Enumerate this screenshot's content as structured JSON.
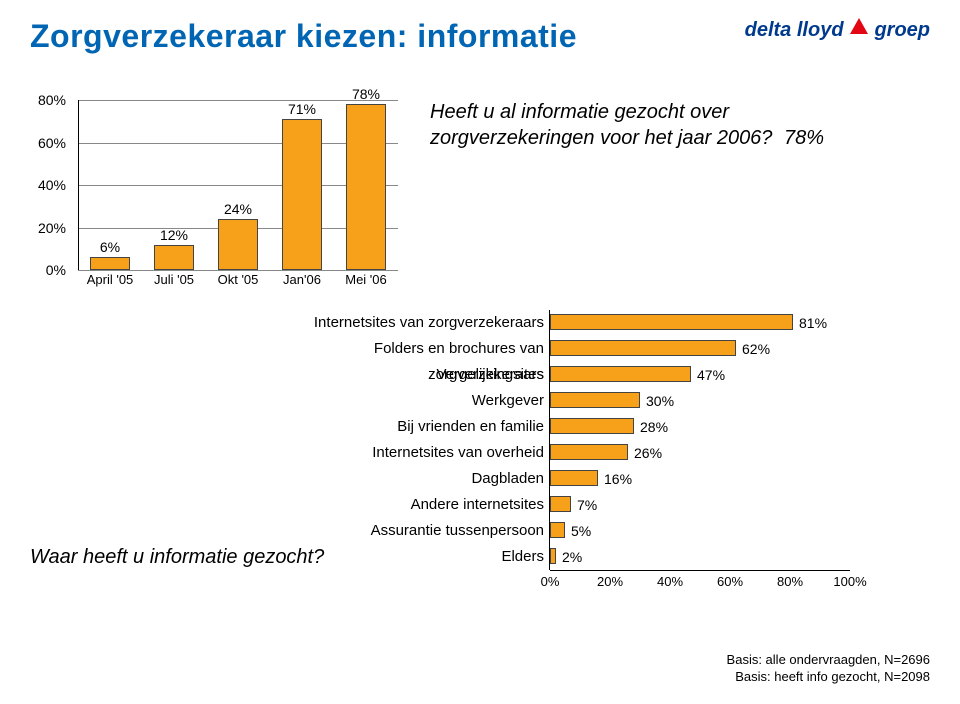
{
  "title": "Zorgverzekeraar kiezen: informatie",
  "title_color": "#0066b3",
  "logo": {
    "text1": "delta lloyd",
    "text2": "groep",
    "color": "#003a8c",
    "accent": "#e30613"
  },
  "column_chart": {
    "type": "bar",
    "y": {
      "ticks": [
        "0%",
        "20%",
        "40%",
        "60%",
        "80%"
      ],
      "max": 80,
      "step": 20,
      "fontsize": 14
    },
    "categories": [
      "April '05",
      "Juli '05",
      "Okt '05",
      "Jan'06",
      "Mei '06"
    ],
    "values": [
      6,
      12,
      24,
      71,
      78
    ],
    "value_labels": [
      "6%",
      "12%",
      "24%",
      "71%",
      "78%"
    ],
    "bar_color": "#f7a11b",
    "bar_border": "#444444",
    "grid_color": "#888888",
    "background": "#ffffff",
    "label_fontsize": 13,
    "value_fontsize": 14
  },
  "question1": {
    "text": "Heeft u al informatie gezocht over zorgverzekeringen voor het jaar 2006?",
    "suffix": "78%",
    "fontsize": 20
  },
  "hbar_chart": {
    "type": "bar_horizontal",
    "categories": [
      "Internetsites van zorgverzekeraars",
      "Folders en brochures van zorgverzekeraars",
      "Vergelijkingsites",
      "Werkgever",
      "Bij vrienden en familie",
      "Internetsites van overheid",
      "Dagbladen",
      "Andere internetsites",
      "Assurantie tussenpersoon",
      "Elders"
    ],
    "values": [
      81,
      62,
      47,
      30,
      28,
      26,
      16,
      7,
      5,
      2
    ],
    "value_labels": [
      "81%",
      "62%",
      "47%",
      "30%",
      "28%",
      "26%",
      "16%",
      "7%",
      "5%",
      "2%"
    ],
    "x": {
      "ticks": [
        "0%",
        "20%",
        "40%",
        "60%",
        "80%",
        "100%"
      ],
      "max": 100,
      "step": 20,
      "fontsize": 13
    },
    "bar_color": "#f7a11b",
    "bar_border": "#444444",
    "label_fontsize": 15,
    "value_fontsize": 14
  },
  "question2": "Waar heeft u informatie gezocht?",
  "basis": {
    "line1": "Basis: alle ondervraagden, N=2696",
    "line2": "Basis: heeft info gezocht, N=2098"
  }
}
